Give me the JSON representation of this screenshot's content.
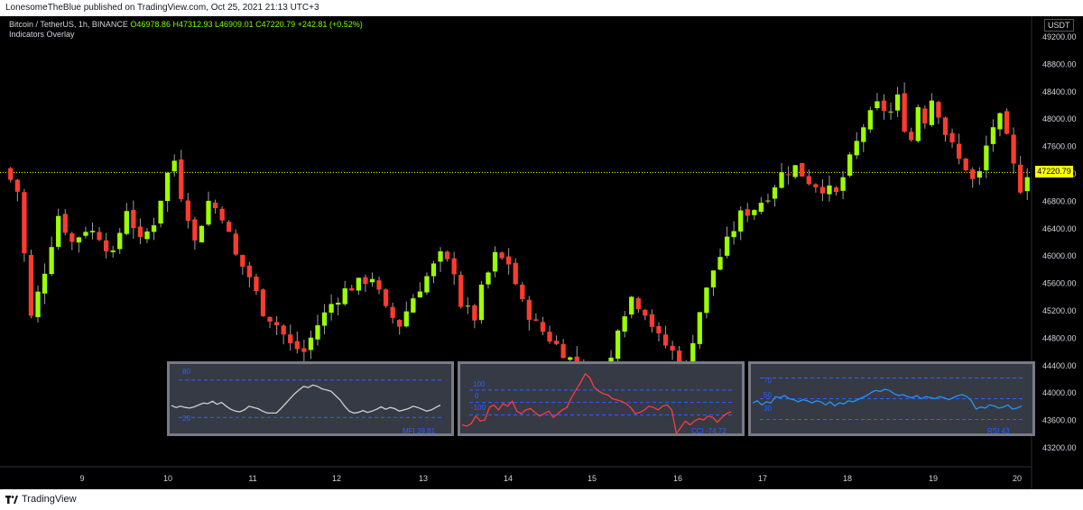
{
  "header": {
    "publisher": "LonesomeTheBlue published on TradingView.com, Oct 25, 2021 21:13 UTC+3"
  },
  "legend": {
    "symbol": "Bitcoin / TetherUS, 1h, BINANCE",
    "open": "O46978.86",
    "high": "H47312.93",
    "low": "L46909.01",
    "close": "C47220.79",
    "change": "+242.81 (+0.52%)",
    "indicator": "Indicators Overlay"
  },
  "footer": {
    "brand": "TradingView"
  },
  "colors": {
    "up": "#9cff00",
    "down": "#ff3b30",
    "last_price": "#ffff00",
    "mfi": "#cfcfcf",
    "cci": "#ff3b3b",
    "rsi": "#2196f3",
    "panel_bg": "#363a45",
    "panel_border": "#787b86",
    "band": "#2962ff"
  },
  "chart_data": [
    {
      "type": "candlestick",
      "title": "Bitcoin / TetherUS, 1h, BINANCE",
      "currency": "USDT",
      "ylim": [
        43000,
        49400
      ],
      "y_ticks": [
        "49200.00",
        "48800.00",
        "48400.00",
        "48000.00",
        "47600.00",
        "47200.00",
        "46800.00",
        "46400.00",
        "46000.00",
        "45600.00",
        "45200.00",
        "44800.00",
        "44400.00",
        "44000.00",
        "43600.00",
        "43200.00"
      ],
      "x_ticks": [
        "9",
        "10",
        "11",
        "12",
        "13",
        "14",
        "15",
        "16",
        "17",
        "18",
        "19",
        "20"
      ],
      "last_price": "47220.79",
      "close_path_x": [
        0,
        2,
        4,
        6,
        8,
        10,
        12,
        14,
        16,
        18,
        20,
        22,
        24,
        25,
        26,
        27,
        28,
        30,
        32,
        34,
        36,
        38,
        40,
        42,
        44,
        46,
        48,
        50,
        52,
        54,
        56,
        58,
        60,
        62,
        64,
        65,
        66,
        67,
        68,
        69,
        70,
        72,
        74,
        76,
        78,
        80,
        82,
        84,
        86,
        88,
        90,
        92,
        94,
        96,
        98,
        100,
        102,
        104,
        106,
        108,
        110,
        112,
        114,
        116,
        118,
        120,
        122,
        124,
        126,
        128,
        130,
        131,
        132,
        133,
        134,
        135,
        136,
        137,
        138,
        139,
        140,
        141,
        142,
        143,
        144,
        145,
        146,
        147,
        148,
        149,
        150
      ],
      "close_path_y": [
        47280,
        46950,
        45100,
        45800,
        46600,
        46200,
        46400,
        46300,
        46000,
        46700,
        46200,
        46500,
        47200,
        47400,
        46900,
        46600,
        46200,
        46800,
        46600,
        46000,
        45700,
        45200,
        45000,
        44700,
        44600,
        45000,
        45300,
        45500,
        45600,
        45700,
        45200,
        45000,
        45400,
        45700,
        46000,
        45900,
        45800,
        45300,
        45200,
        45100,
        45500,
        46000,
        45900,
        45300,
        45000,
        44800,
        44600,
        44400,
        44200,
        44000,
        45000,
        45400,
        45200,
        44800,
        44600,
        44400,
        45200,
        45800,
        46200,
        46600,
        46700,
        46900,
        47200,
        47300,
        47100,
        47000,
        46900,
        47400,
        47900,
        48200,
        48100,
        48300,
        47900,
        47700,
        48200,
        48000,
        48300,
        48100,
        47800,
        47600,
        47400,
        47300,
        47100,
        47200,
        47600,
        47900,
        48000,
        47700,
        47300,
        47000,
        47220.79
      ]
    },
    {
      "type": "line",
      "name": "MFI",
      "label": "MFI 39.81",
      "ylim": [
        0,
        100
      ],
      "bands": [
        80,
        20
      ],
      "values": [
        39,
        36,
        38,
        36,
        35,
        37,
        40,
        43,
        42,
        46,
        41,
        44,
        38,
        33,
        30,
        29,
        32,
        38,
        36,
        34,
        30,
        27,
        27,
        27,
        34,
        42,
        50,
        58,
        64,
        70,
        68,
        72,
        70,
        66,
        64,
        62,
        55,
        48,
        38,
        30,
        27,
        28,
        31,
        28,
        30,
        33,
        37,
        33,
        36,
        34,
        30,
        32,
        34,
        38,
        36,
        33,
        30,
        32,
        36,
        39.81
      ]
    },
    {
      "type": "line",
      "name": "CCI",
      "label": "CCI -74.72",
      "ylim": [
        -220,
        280
      ],
      "bands": [
        100,
        0,
        -100
      ],
      "values": [
        -180,
        -190,
        -170,
        -110,
        -150,
        -140,
        -40,
        -20,
        -60,
        -10,
        -30,
        10,
        -70,
        -90,
        -60,
        -50,
        -80,
        -110,
        -90,
        -70,
        -120,
        -90,
        -60,
        -40,
        40,
        100,
        160,
        230,
        200,
        120,
        90,
        70,
        60,
        30,
        20,
        10,
        -10,
        -40,
        -90,
        -80,
        -60,
        -30,
        -40,
        -60,
        -30,
        -20,
        -60,
        -250,
        -200,
        -150,
        -180,
        -150,
        -130,
        -140,
        -110,
        -120,
        -160,
        -120,
        -90,
        -74.72
      ]
    },
    {
      "type": "line",
      "name": "RSI",
      "label": "RSI 43",
      "ylim": [
        20,
        80
      ],
      "bands": [
        70,
        50,
        30
      ],
      "values": [
        46,
        48,
        44,
        47,
        46,
        52,
        51,
        53,
        50,
        49,
        47,
        49,
        48,
        46,
        48,
        47,
        44,
        47,
        43,
        46,
        45,
        48,
        47,
        49,
        51,
        53,
        56,
        58,
        57,
        59,
        58,
        55,
        53,
        54,
        52,
        51,
        53,
        50,
        52,
        51,
        50,
        52,
        51,
        49,
        51,
        53,
        54,
        52,
        48,
        40,
        42,
        41,
        44,
        43,
        41,
        42,
        44,
        40,
        41,
        43
      ]
    }
  ]
}
